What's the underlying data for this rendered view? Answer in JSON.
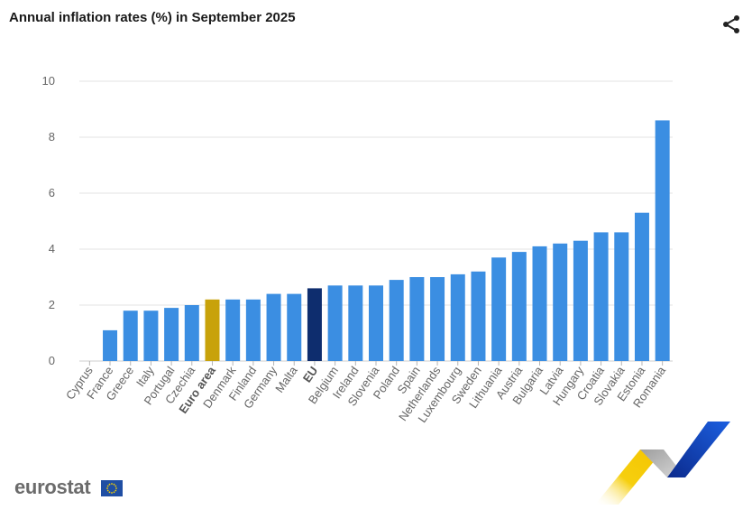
{
  "header": {
    "title": "Annual inflation rates (%) in September 2025"
  },
  "icons": {
    "share": "share-icon"
  },
  "logo": {
    "text": "eurostat"
  },
  "colors": {
    "bar": "#3b8ee2",
    "euro_area": "#c8a20a",
    "eu": "#0e2d6e",
    "grid": "#e3e3e3",
    "axis_text": "#666666"
  },
  "chart_data": {
    "type": "bar",
    "title": "Annual inflation rates (%) in September 2025",
    "xlabel": "",
    "ylabel": "",
    "ylim": [
      0,
      10
    ],
    "yticks": [
      0,
      2,
      4,
      6,
      8,
      10
    ],
    "grid": true,
    "categories": [
      "Cyprus",
      "France",
      "Greece",
      "Italy",
      "Portugal",
      "Czechia",
      "Euro area",
      "Denmark",
      "Finland",
      "Germany",
      "Malta",
      "EU",
      "Belgium",
      "Ireland",
      "Slovenia",
      "Poland",
      "Spain",
      "Netherlands",
      "Luxembourg",
      "Sweden",
      "Lithuania",
      "Austria",
      "Bulgaria",
      "Latvia",
      "Hungary",
      "Croatia",
      "Slovakia",
      "Estonia",
      "Romania"
    ],
    "values": [
      0.0,
      1.1,
      1.8,
      1.8,
      1.9,
      2.0,
      2.2,
      2.2,
      2.2,
      2.4,
      2.4,
      2.6,
      2.7,
      2.7,
      2.7,
      2.9,
      3.0,
      3.0,
      3.1,
      3.2,
      3.7,
      3.9,
      4.1,
      4.2,
      4.3,
      4.6,
      4.6,
      5.3,
      8.6
    ],
    "highlight": {
      "Euro area": "#c8a20a",
      "EU": "#0e2d6e"
    },
    "bold_categories": [
      "Euro area",
      "EU"
    ]
  }
}
